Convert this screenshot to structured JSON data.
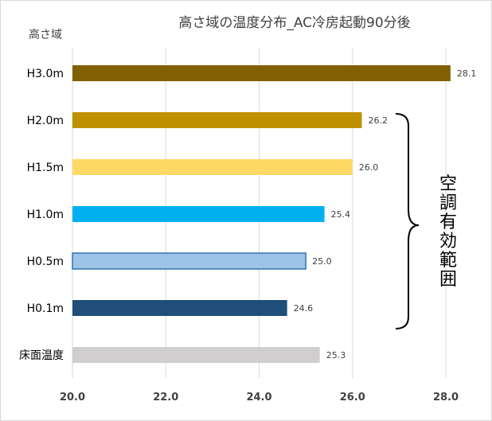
{
  "chart_data": {
    "type": "bar",
    "orientation": "horizontal",
    "title": "高さ域の温度分布_AC冷房起動90分後",
    "ylabel": "高さ域",
    "categories": [
      "H3.0m",
      "H2.0m",
      "H1.5m",
      "H1.0m",
      "H0.5m",
      "H0.1m",
      "床面温度"
    ],
    "values": [
      28.1,
      26.2,
      26.0,
      25.4,
      25.0,
      24.6,
      25.3
    ],
    "value_labels": [
      "28.1",
      "26.2",
      "26.0",
      "25.4",
      "25.0",
      "24.6",
      "25.3"
    ],
    "colors": [
      "#806000",
      "#BF9000",
      "#FFD966",
      "#00B0F0",
      "#9DC3E6",
      "#1F4E79",
      "#D0CECE"
    ],
    "xlim": [
      20.0,
      28.0
    ],
    "xticks": [
      "20.0",
      "22.0",
      "24.0",
      "26.0",
      "28.0"
    ],
    "grid": true,
    "annotation": "空調有効範囲"
  }
}
